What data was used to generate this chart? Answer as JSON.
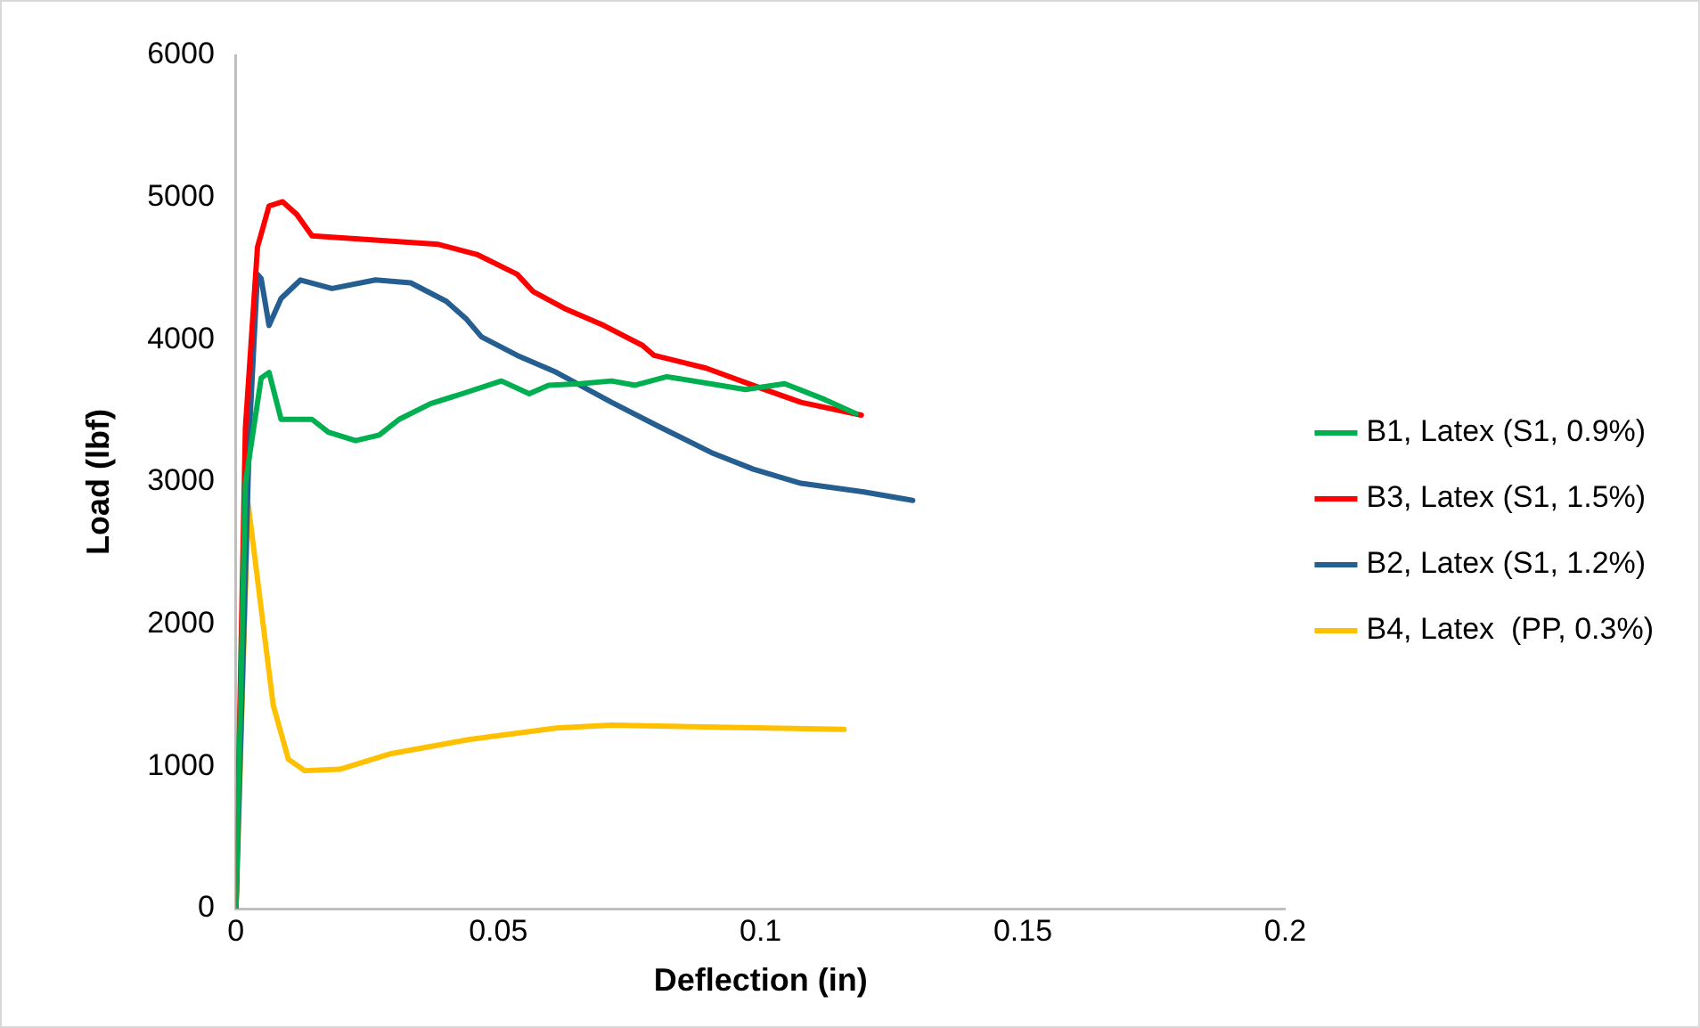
{
  "chart_data": {
    "type": "line",
    "xlabel": "Deflection (in)",
    "ylabel": "Load (lbf)",
    "xlim": [
      0,
      0.2
    ],
    "xticks": [
      0,
      0.05,
      0.1,
      0.15,
      0.2
    ],
    "ylim": [
      0,
      6000
    ],
    "yticks": [
      0,
      1000,
      2000,
      3000,
      4000,
      5000,
      6000
    ],
    "grid": false,
    "legend": "right",
    "marker": "none",
    "line_style": "solid",
    "series": [
      {
        "name": "B1, Latex (S1, 0.9%)",
        "color": "#00b050",
        "x": [
          0,
          0.0018,
          0.0048,
          0.0063,
          0.0086,
          0.0145,
          0.0176,
          0.0228,
          0.0273,
          0.0311,
          0.0371,
          0.0431,
          0.0506,
          0.0559,
          0.0596,
          0.0656,
          0.0716,
          0.0761,
          0.0821,
          0.0971,
          0.1046,
          0.1122,
          0.1182
        ],
        "values": [
          0,
          2990,
          3730,
          3770,
          3440,
          3440,
          3350,
          3290,
          3330,
          3440,
          3550,
          3620,
          3710,
          3620,
          3680,
          3690,
          3710,
          3680,
          3740,
          3650,
          3690,
          3580,
          3480
        ]
      },
      {
        "name": "B3, Latex (S1, 1.5%)",
        "color": "#ff0000",
        "x": [
          0,
          0.0018,
          0.0041,
          0.0063,
          0.0089,
          0.0116,
          0.0145,
          0.0386,
          0.0459,
          0.0536,
          0.0566,
          0.0626,
          0.0701,
          0.0775,
          0.0797,
          0.0896,
          0.1,
          0.1077,
          0.1192
        ],
        "values": [
          0,
          3380,
          4650,
          4940,
          4970,
          4880,
          4730,
          4670,
          4600,
          4460,
          4340,
          4220,
          4100,
          3960,
          3890,
          3800,
          3660,
          3560,
          3470
        ]
      },
      {
        "name": "B2, Latex (S1, 1.2%)",
        "color": "#255e91",
        "x": [
          0,
          0.0026,
          0.0041,
          0.0048,
          0.0063,
          0.0086,
          0.0123,
          0.0183,
          0.0266,
          0.0333,
          0.0401,
          0.0438,
          0.0468,
          0.0536,
          0.0611,
          0.0716,
          0.0806,
          0.091,
          0.0986,
          0.1077,
          0.1197,
          0.129
        ],
        "values": [
          0,
          3380,
          4460,
          4430,
          4100,
          4290,
          4420,
          4360,
          4420,
          4400,
          4270,
          4150,
          4020,
          3890,
          3770,
          3560,
          3390,
          3200,
          3090,
          2990,
          2930,
          2870
        ]
      },
      {
        "name": "B4, Latex  (PP, 0.3%)",
        "color": "#ffc000",
        "x": [
          0,
          0.0023,
          0.0071,
          0.01,
          0.0131,
          0.0198,
          0.0296,
          0.0446,
          0.0611,
          0.0716,
          0.1159
        ],
        "values": [
          0,
          2850,
          1430,
          1050,
          970,
          980,
          1090,
          1190,
          1270,
          1290,
          1260
        ]
      }
    ]
  }
}
